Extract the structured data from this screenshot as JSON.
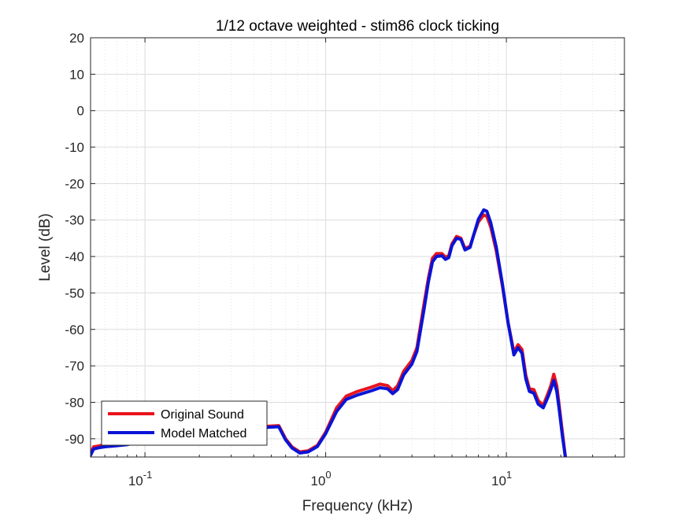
{
  "chart_data": {
    "type": "line",
    "title": "1/12 octave weighted - stim86 clock ticking",
    "xlabel": "Frequency (kHz)",
    "ylabel": "Level (dB)",
    "xscale": "log",
    "xlim": [
      0.05,
      45
    ],
    "ylim": [
      -95,
      20
    ],
    "grid": true,
    "legend_position": "bottom-left",
    "yticks": [
      20,
      10,
      0,
      -10,
      -20,
      -30,
      -40,
      -50,
      -60,
      -70,
      -80,
      -90
    ],
    "ytick_labels": [
      "20",
      "10",
      "0",
      "-10",
      "-20",
      "-30",
      "-40",
      "-50",
      "-60",
      "-70",
      "-80",
      "-90"
    ],
    "xticks": [
      {
        "value": 0.1,
        "base": "10",
        "exp": "-1"
      },
      {
        "value": 1,
        "base": "10",
        "exp": "0"
      },
      {
        "value": 10,
        "base": "10",
        "exp": "1"
      }
    ],
    "series": [
      {
        "name": "Original Sound",
        "color": "#e8141c",
        "x": [
          0.05,
          0.052,
          0.055,
          0.06,
          0.07,
          0.08,
          0.1,
          0.15,
          0.2,
          0.3,
          0.4,
          0.5,
          0.55,
          0.6,
          0.65,
          0.72,
          0.8,
          0.9,
          1.0,
          1.15,
          1.3,
          1.5,
          1.8,
          2.0,
          2.2,
          2.35,
          2.5,
          2.7,
          3.0,
          3.2,
          3.5,
          3.7,
          3.9,
          4.1,
          4.4,
          4.6,
          4.8,
          5.0,
          5.3,
          5.6,
          5.9,
          6.3,
          6.6,
          7.0,
          7.5,
          7.8,
          8.2,
          8.8,
          9.5,
          10.2,
          11.0,
          11.6,
          12.2,
          12.8,
          13.4,
          14.2,
          15.0,
          16.0,
          17.0,
          17.6,
          18.3,
          19.0,
          19.6,
          20.4,
          21.2
        ],
        "y": [
          -94,
          -92.2,
          -92,
          -91.6,
          -91.4,
          -91.2,
          -90.2,
          -89,
          -88.3,
          -87.5,
          -86.8,
          -86.5,
          -86.4,
          -90,
          -92.2,
          -93.6,
          -93.3,
          -91.8,
          -88.2,
          -81.5,
          -78.3,
          -77,
          -75.8,
          -75,
          -75.4,
          -76.8,
          -75.5,
          -71.5,
          -68.5,
          -65,
          -53,
          -46,
          -40.5,
          -39.2,
          -39.2,
          -40.2,
          -39.8,
          -36.5,
          -34.5,
          -35,
          -37.8,
          -37.2,
          -34,
          -30.5,
          -28.6,
          -29,
          -32,
          -38.5,
          -48,
          -58,
          -66.2,
          -64.2,
          -65.5,
          -72.5,
          -76.3,
          -76.5,
          -79.5,
          -80.8,
          -77.5,
          -75.5,
          -72.3,
          -75.5,
          -81,
          -88,
          -95
        ]
      },
      {
        "name": "Model Matched",
        "color": "#0a14d6",
        "x": [
          0.05,
          0.052,
          0.055,
          0.06,
          0.07,
          0.08,
          0.1,
          0.15,
          0.2,
          0.3,
          0.4,
          0.5,
          0.55,
          0.6,
          0.65,
          0.72,
          0.8,
          0.9,
          1.0,
          1.15,
          1.3,
          1.5,
          1.8,
          2.0,
          2.2,
          2.35,
          2.5,
          2.7,
          3.0,
          3.2,
          3.5,
          3.7,
          3.9,
          4.1,
          4.4,
          4.6,
          4.8,
          5.0,
          5.3,
          5.6,
          5.9,
          6.3,
          6.6,
          7.0,
          7.5,
          7.8,
          8.2,
          8.8,
          9.5,
          10.2,
          11.0,
          11.6,
          12.2,
          12.8,
          13.4,
          14.2,
          15.0,
          16.0,
          17.0,
          17.6,
          18.3,
          19.0,
          19.6,
          20.4,
          21.2
        ],
        "y": [
          -94.5,
          -92.8,
          -92.5,
          -92.2,
          -91.9,
          -91.6,
          -90.6,
          -89.3,
          -88.6,
          -87.8,
          -87.1,
          -86.8,
          -86.7,
          -90.3,
          -92.5,
          -93.9,
          -93.6,
          -92.1,
          -88.6,
          -82.5,
          -79.2,
          -78,
          -76.8,
          -76,
          -76.3,
          -77.6,
          -76.5,
          -72.5,
          -69.5,
          -66,
          -54.5,
          -47,
          -41.5,
          -40,
          -39.8,
          -40.8,
          -40.3,
          -37,
          -35,
          -35.3,
          -38.2,
          -37.5,
          -34,
          -29.8,
          -27.2,
          -27.6,
          -30.8,
          -37.5,
          -47.5,
          -58,
          -67,
          -65,
          -66.5,
          -73.5,
          -77,
          -77.5,
          -80.5,
          -81.5,
          -78.5,
          -76.5,
          -74,
          -77,
          -82,
          -89,
          -95
        ]
      }
    ]
  }
}
